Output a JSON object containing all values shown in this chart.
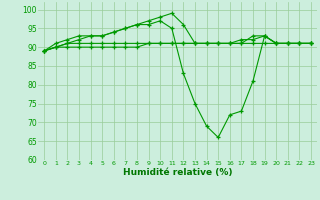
{
  "background_color": "#cceedd",
  "grid_color": "#99cc99",
  "line_color": "#009900",
  "xlabel": "Humidité relative (%)",
  "xlabel_color": "#007700",
  "ylim": [
    60,
    102
  ],
  "xlim": [
    -0.5,
    23.5
  ],
  "yticks": [
    60,
    65,
    70,
    75,
    80,
    85,
    90,
    95,
    100
  ],
  "xticks": [
    0,
    1,
    2,
    3,
    4,
    5,
    6,
    7,
    8,
    9,
    10,
    11,
    12,
    13,
    14,
    15,
    16,
    17,
    18,
    19,
    20,
    21,
    22,
    23
  ],
  "series": [
    [
      89,
      90,
      90,
      90,
      90,
      90,
      90,
      90,
      90,
      91,
      91,
      91,
      91,
      91,
      91,
      91,
      91,
      91,
      91,
      91,
      91,
      91,
      91,
      91
    ],
    [
      89,
      90,
      91,
      91,
      91,
      91,
      91,
      91,
      91,
      91,
      91,
      91,
      91,
      91,
      91,
      91,
      91,
      91,
      93,
      93,
      91,
      91,
      91,
      91
    ],
    [
      89,
      90,
      91,
      92,
      93,
      93,
      94,
      95,
      96,
      96,
      97,
      95,
      83,
      75,
      69,
      66,
      72,
      73,
      81,
      93,
      91,
      91,
      91,
      91
    ],
    [
      89,
      91,
      92,
      93,
      93,
      93,
      94,
      95,
      96,
      97,
      98,
      99,
      96,
      91,
      91,
      91,
      91,
      92,
      92,
      93,
      91,
      91,
      91,
      91
    ]
  ],
  "figsize": [
    3.2,
    2.0
  ],
  "dpi": 100
}
